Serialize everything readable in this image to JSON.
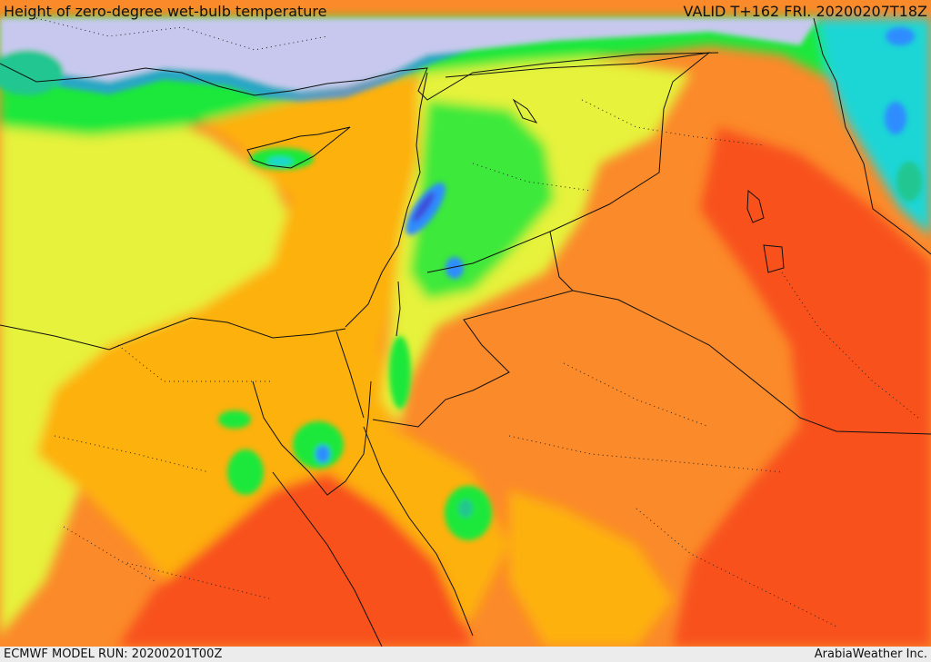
{
  "header": {
    "title": "Height of zero-degree wet-bulb temperature",
    "valid": "VALID T+162 FRI. 20200207T18Z"
  },
  "footer": {
    "model_run": "ECMWF MODEL RUN: 20200201T00Z",
    "credit": "ArabiaWeather Inc."
  },
  "colors": {
    "water": "#c8c8ee",
    "deep_blue": "#3d4bd8",
    "blue": "#2d8cff",
    "cyan": "#1ed6d6",
    "teal": "#22c690",
    "green": "#1ee83b",
    "lime": "#8cf02a",
    "yellow_green": "#e6f23a",
    "orange_yellow": "#fdb10c",
    "orange": "#fb8a2a",
    "red_orange": "#f8511a",
    "border": "#111111"
  }
}
